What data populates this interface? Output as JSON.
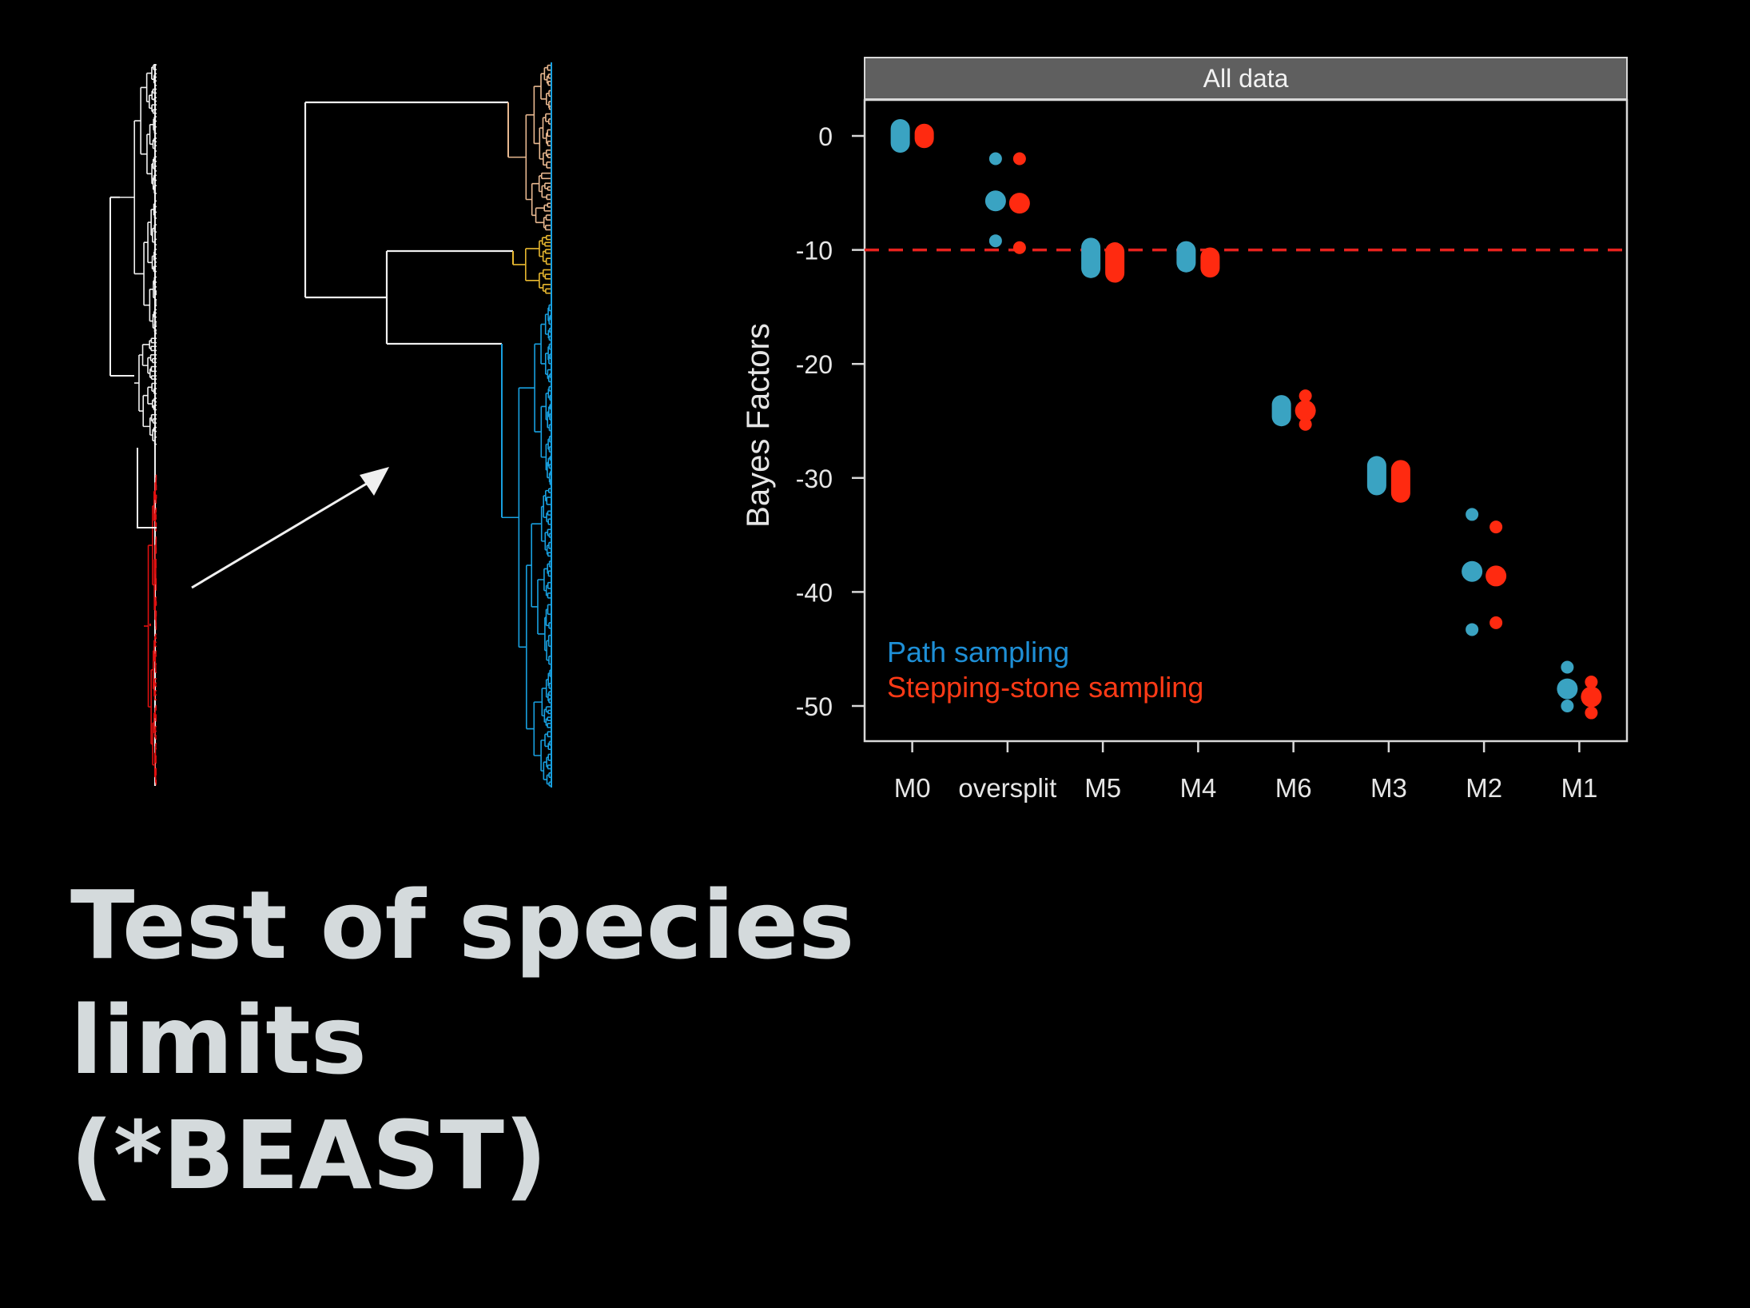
{
  "slide": {
    "title_lines": [
      "Test of species",
      "limits",
      "(*BEAST)"
    ]
  },
  "colors": {
    "background": "#000000",
    "path": "#3aa3c2",
    "stone": "#ff2a10",
    "legend_path": "#1e8fd6",
    "legend_stone": "#ff3a16",
    "threshold": "#e8221e",
    "panel_header": "#5f5f5f",
    "axis": "#d8d8d8",
    "tree_white": "#f0f0f0",
    "tree_red": "#e01010",
    "tree_tan": "#e8b890",
    "tree_yellow": "#e8b830",
    "tree_blue": "#18a0e0",
    "title_text": "#d4dadc"
  },
  "icons": {
    "arrow": "arrow-icon"
  },
  "chart_data": {
    "type": "scatter",
    "panel_title": "All data",
    "ylabel": "Bayes Factors",
    "xlabel": "",
    "ylim": [
      -53,
      3
    ],
    "yticks": [
      0,
      -10,
      -20,
      -30,
      -40,
      -50
    ],
    "categories": [
      "M0",
      "oversplit",
      "M5",
      "M4",
      "M6",
      "M3",
      "M2",
      "M1"
    ],
    "threshold": -10,
    "legend": {
      "placement": "bottom-left",
      "entries": [
        "Path sampling",
        "Stepping-stone sampling"
      ]
    },
    "series": [
      {
        "name": "Path sampling",
        "color": "#3aa3c2",
        "median": [
          0,
          -5.7,
          -10.7,
          -10.6,
          -24.1,
          -29.8,
          -38.2,
          -48.5
        ],
        "low": [
          -0.7,
          -9.2,
          -11.8,
          -11.2,
          -24.7,
          -30.8,
          -43.3,
          -50
        ],
        "high": [
          0.7,
          -2,
          -9.8,
          -10,
          -23.5,
          -28.9,
          -33.2,
          -46.6
        ]
      },
      {
        "name": "Stepping-stone sampling",
        "color": "#ff2a10",
        "median": [
          0,
          -5.9,
          -11.1,
          -11.1,
          -24.1,
          -30.3,
          -38.6,
          -49.2
        ],
        "low": [
          -0.3,
          -9.8,
          -12.1,
          -11.6,
          -25.3,
          -31.4,
          -42.7,
          -50.6
        ],
        "high": [
          0.3,
          -2,
          -10.1,
          -10.5,
          -22.8,
          -29.2,
          -34.3,
          -47.9
        ]
      }
    ]
  }
}
